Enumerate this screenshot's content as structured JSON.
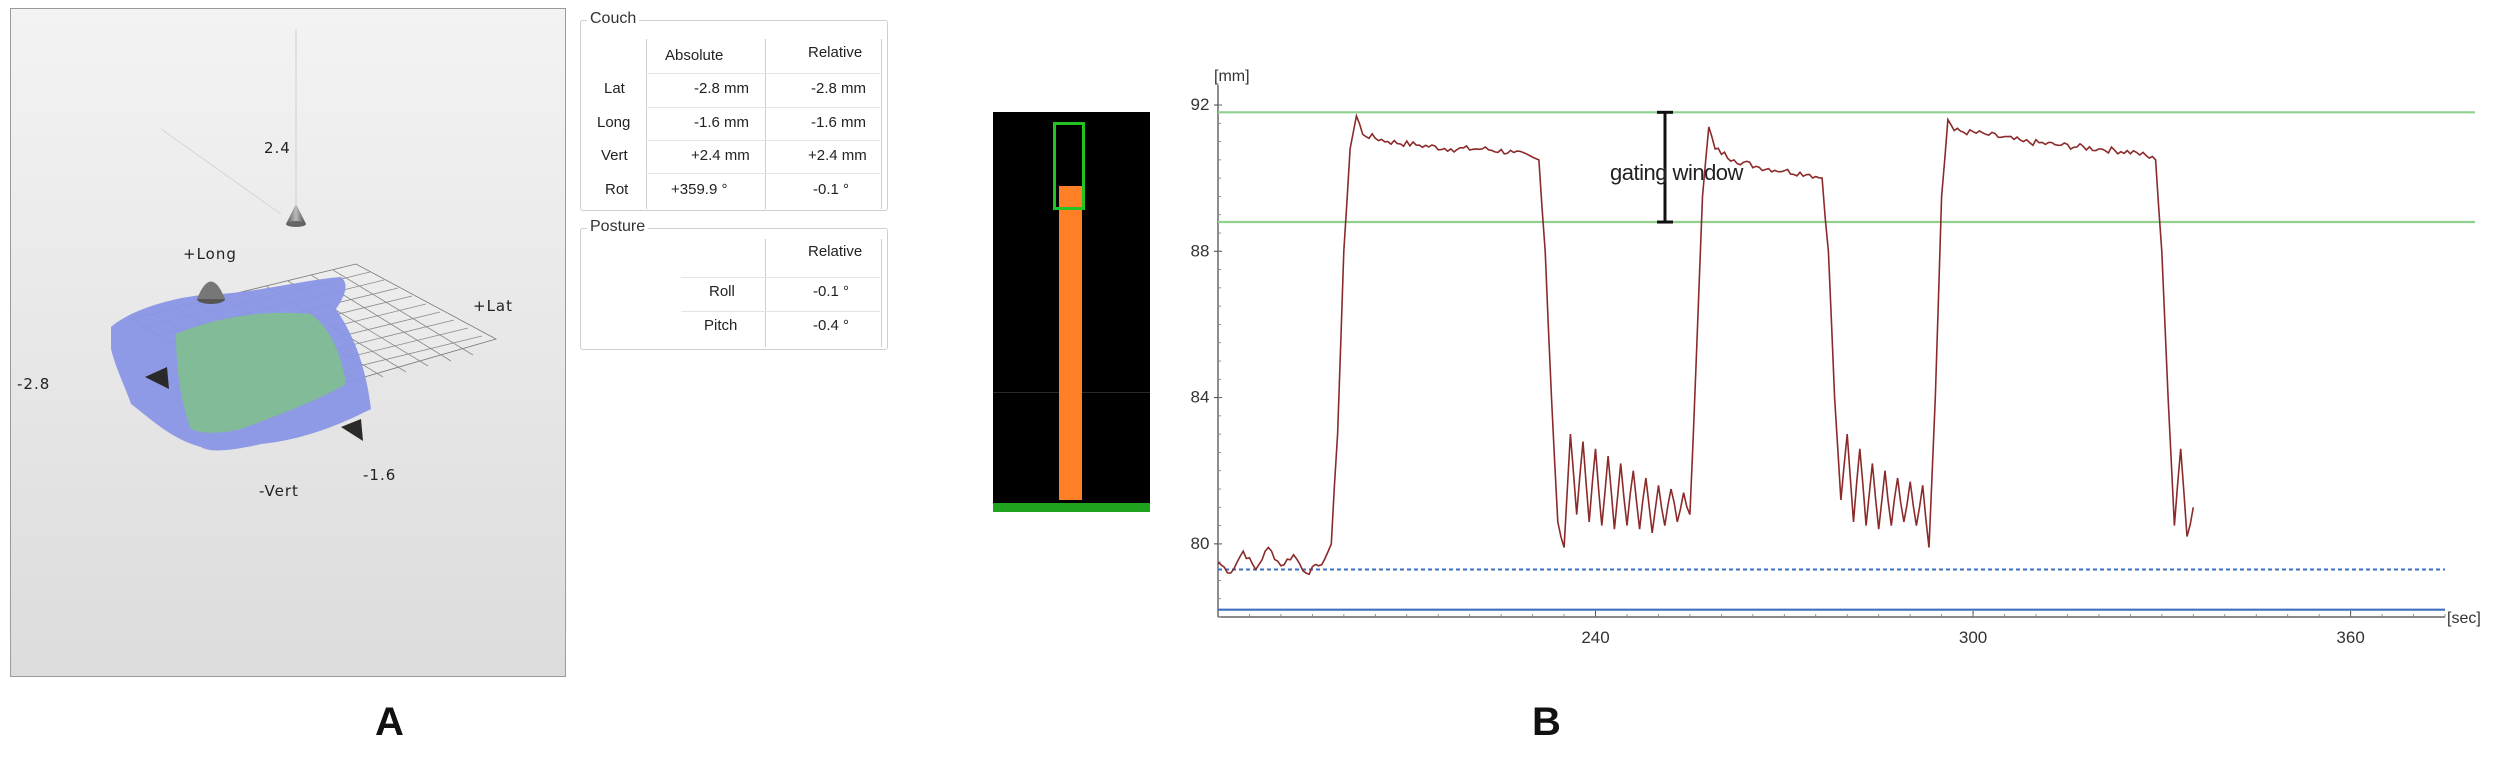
{
  "viewer": {
    "labels": {
      "top": "2.4",
      "plus_long": "+Long",
      "plus_lat": "+Lat",
      "left": "-2.8",
      "bottom_right": "-1.6",
      "minus_vert": "-Vert"
    },
    "colors": {
      "surface_green": "#7fbf8f",
      "surface_blue": "#8a96e6",
      "background": "#e6e6e6"
    }
  },
  "couch": {
    "title": "Couch",
    "headers": {
      "absolute": "Absolute",
      "relative": "Relative"
    },
    "rows": [
      {
        "label": "Lat",
        "absolute": "-2.8 mm",
        "relative": "-2.8  mm"
      },
      {
        "label": "Long",
        "absolute": "-1.6 mm",
        "relative": "-1.6  mm"
      },
      {
        "label": "Vert",
        "absolute": "+2.4 mm",
        "relative": "+2.4  mm"
      },
      {
        "label": "Rot",
        "absolute": "+359.9 °",
        "relative": "-0.1  °"
      }
    ]
  },
  "posture": {
    "title": "Posture",
    "headers": {
      "relative": "Relative"
    },
    "rows": [
      {
        "label": "Roll",
        "relative": "-0.1  °"
      },
      {
        "label": "Pitch",
        "relative": "-0.4  °"
      }
    ]
  },
  "gauge": {
    "level_fraction": 0.84,
    "colors": {
      "bar": "#ff7f27",
      "window": "#22c322",
      "background": "#000000"
    }
  },
  "panel_letters": {
    "a": "A",
    "b": "B"
  },
  "chart_data": {
    "type": "line",
    "title": "",
    "xlabel": "[sec]",
    "ylabel": "[mm]",
    "xlim": [
      180,
      375
    ],
    "ylim": [
      78,
      92
    ],
    "x_ticks": [
      "240",
      "300",
      "360"
    ],
    "x_tick_values": [
      240,
      300,
      360
    ],
    "y_ticks": [
      "92",
      "88",
      "84",
      "80"
    ],
    "y_tick_values": [
      92,
      88,
      84,
      80
    ],
    "grid": false,
    "annotation": "gating window",
    "gating_window": [
      88.8,
      91.8
    ],
    "baseline_dashed": 79.3,
    "baseline_solid": 78.2,
    "colors": {
      "trace": "#8b2a2a",
      "gating_lines": "#8fd08f",
      "baseline": "#3b6fbf"
    },
    "series": [
      {
        "values": [
          [
            180,
            79.5
          ],
          [
            182,
            79.2
          ],
          [
            184,
            79.8
          ],
          [
            186,
            79.3
          ],
          [
            188,
            79.9
          ],
          [
            190,
            79.4
          ],
          [
            192,
            79.7
          ],
          [
            194,
            79.2
          ],
          [
            196,
            79.4
          ],
          [
            197,
            79.6
          ],
          [
            198,
            80.0
          ],
          [
            199,
            83.0
          ],
          [
            200,
            88.0
          ],
          [
            201,
            90.8
          ],
          [
            202,
            91.7
          ],
          [
            203,
            91.2
          ],
          [
            207,
            91.0
          ],
          [
            212,
            90.9
          ],
          [
            217,
            90.8
          ],
          [
            222,
            90.8
          ],
          [
            227,
            90.7
          ],
          [
            231,
            90.5
          ],
          [
            232,
            88.0
          ],
          [
            233,
            84.0
          ],
          [
            234,
            80.6
          ],
          [
            235,
            79.9
          ],
          [
            236,
            83.0
          ],
          [
            237,
            80.8
          ],
          [
            238,
            82.8
          ],
          [
            239,
            80.6
          ],
          [
            240,
            82.6
          ],
          [
            241,
            80.5
          ],
          [
            242,
            82.4
          ],
          [
            243,
            80.4
          ],
          [
            244,
            82.2
          ],
          [
            245,
            80.5
          ],
          [
            246,
            82.0
          ],
          [
            247,
            80.4
          ],
          [
            248,
            81.8
          ],
          [
            249,
            80.3
          ],
          [
            250,
            81.6
          ],
          [
            251,
            80.5
          ],
          [
            252,
            81.5
          ],
          [
            253,
            80.6
          ],
          [
            254,
            81.4
          ],
          [
            255,
            80.8
          ],
          [
            256,
            85.0
          ],
          [
            257,
            89.5
          ],
          [
            258,
            91.4
          ],
          [
            259,
            90.8
          ],
          [
            262,
            90.5
          ],
          [
            266,
            90.3
          ],
          [
            270,
            90.2
          ],
          [
            274,
            90.1
          ],
          [
            276,
            90.0
          ],
          [
            277,
            88.0
          ],
          [
            278,
            84.0
          ],
          [
            279,
            81.2
          ],
          [
            280,
            83.0
          ],
          [
            281,
            80.6
          ],
          [
            282,
            82.6
          ],
          [
            283,
            80.5
          ],
          [
            284,
            82.2
          ],
          [
            285,
            80.4
          ],
          [
            286,
            82.0
          ],
          [
            287,
            80.5
          ],
          [
            288,
            81.8
          ],
          [
            289,
            80.6
          ],
          [
            290,
            81.7
          ],
          [
            291,
            80.5
          ],
          [
            292,
            81.6
          ],
          [
            293,
            79.9
          ],
          [
            294,
            84.0
          ],
          [
            295,
            89.5
          ],
          [
            296,
            91.6
          ],
          [
            297,
            91.3
          ],
          [
            302,
            91.2
          ],
          [
            308,
            91.0
          ],
          [
            314,
            90.9
          ],
          [
            320,
            90.8
          ],
          [
            326,
            90.7
          ],
          [
            329,
            90.5
          ],
          [
            330,
            88.0
          ],
          [
            331,
            84.0
          ],
          [
            332,
            80.5
          ],
          [
            333,
            82.6
          ],
          [
            334,
            80.2
          ],
          [
            335,
            81.0
          ]
        ]
      }
    ]
  }
}
